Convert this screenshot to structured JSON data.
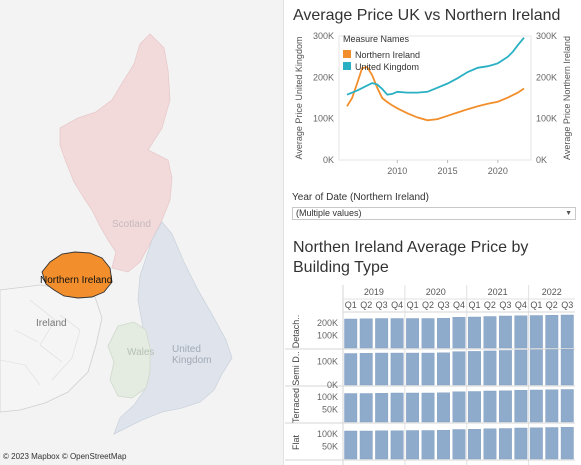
{
  "map": {
    "labels": {
      "northern_ireland": "Northern Ireland",
      "scotland": "Scotland",
      "ireland": "Ireland",
      "wales": "Wales",
      "united_kingdom": "United Kingdom"
    },
    "attribution": "© 2023 Mapbox © OpenStreetMap",
    "colors": {
      "northern_ireland": "#f28e2b",
      "scotland": "#f2dadb",
      "england": "#dfe4ec",
      "wales": "#e4ece2",
      "ireland": "#f5f5f5",
      "sea": "#f3f3f3"
    }
  },
  "line_chart": {
    "title": "Average Price UK vs Northern Ireland",
    "y_left_label": "Average Price United Kingdom",
    "y_right_label": "Average Price Northern Ireland",
    "legend_title": "Measure Names",
    "chart_data": {
      "type": "line",
      "x_ticks": [
        "2010",
        "2015",
        "2020"
      ],
      "y_ticks": [
        "0K",
        "100K",
        "200K",
        "300K"
      ],
      "ylim": [
        0,
        300000
      ],
      "series": [
        {
          "name": "Northern Ireland",
          "color": "#f28e2b",
          "x": [
            2005.0,
            2005.5,
            2006.0,
            2006.5,
            2007.0,
            2007.5,
            2008.0,
            2008.5,
            2009.0,
            2009.5,
            2010.0,
            2011.0,
            2012.0,
            2013.0,
            2014.0,
            2015.0,
            2016.0,
            2017.0,
            2018.0,
            2019.0,
            2020.0,
            2021.0,
            2022.0,
            2022.6
          ],
          "y": [
            130000,
            150000,
            185000,
            222000,
            225000,
            205000,
            175000,
            150000,
            140000,
            132000,
            125000,
            113000,
            103000,
            96000,
            99000,
            107000,
            115000,
            123000,
            130000,
            136000,
            141000,
            151000,
            163000,
            173000
          ]
        },
        {
          "name": "United Kingdom",
          "color": "#2ab0c3",
          "x": [
            2005.0,
            2006.0,
            2007.0,
            2007.5,
            2008.0,
            2008.5,
            2009.0,
            2009.5,
            2010.0,
            2011.0,
            2012.0,
            2013.0,
            2014.0,
            2015.0,
            2016.0,
            2017.0,
            2018.0,
            2019.0,
            2019.5,
            2020.0,
            2020.5,
            2021.0,
            2021.5,
            2022.0,
            2022.6
          ],
          "y": [
            158000,
            168000,
            180000,
            186000,
            183000,
            172000,
            158000,
            160000,
            165000,
            163000,
            163000,
            165000,
            175000,
            185000,
            198000,
            213000,
            223000,
            227000,
            230000,
            234000,
            242000,
            250000,
            262000,
            278000,
            296000
          ]
        }
      ]
    }
  },
  "filter": {
    "label": "Year of Date (Northern Ireland)",
    "value": "(Multiple values)"
  },
  "bar_chart": {
    "title": "Northen Ireland Average Price by Building Type",
    "chart_data": {
      "type": "bar",
      "years": [
        "2019",
        "2020",
        "2021",
        "2022"
      ],
      "quarters": [
        "Q1",
        "Q2",
        "Q3",
        "Q4",
        "Q1",
        "Q2",
        "Q3",
        "Q4",
        "Q1",
        "Q2",
        "Q3",
        "Q4",
        "Q1",
        "Q2",
        "Q3"
      ],
      "bar_color": "#8fabcc",
      "rows": [
        {
          "name": "Detach..",
          "ticks": [
            "200K",
            "100K"
          ],
          "ymax": 280000,
          "tick_values": [
            200000,
            100000
          ],
          "values": [
            232000,
            234000,
            236000,
            236000,
            236000,
            236000,
            238000,
            246000,
            248000,
            252000,
            256000,
            258000,
            260000,
            262000,
            264000
          ]
        },
        {
          "name": "Semi D..",
          "ticks": [
            "100K",
            "0K"
          ],
          "ymax": 150000,
          "tick_values": [
            100000,
            0
          ],
          "values": [
            135000,
            136000,
            137000,
            137000,
            137000,
            137000,
            138000,
            143000,
            144000,
            146000,
            148000,
            150000,
            151000,
            152000,
            153000
          ]
        },
        {
          "name": "Terraced",
          "ticks": [
            "100K",
            "50K"
          ],
          "ymax": 140000,
          "tick_values": [
            100000,
            50000
          ],
          "values": [
            114000,
            114000,
            115000,
            116000,
            116000,
            116000,
            117000,
            121000,
            122000,
            124000,
            125000,
            127000,
            128000,
            129000,
            130000
          ]
        },
        {
          "name": "Flat",
          "ticks": [
            "100K",
            "50K"
          ],
          "ymax": 140000,
          "tick_values": [
            100000,
            50000
          ],
          "values": [
            112000,
            112000,
            113000,
            113000,
            114000,
            114000,
            115000,
            118000,
            119000,
            121000,
            122000,
            124000,
            125000,
            126000,
            127000
          ]
        }
      ]
    }
  }
}
